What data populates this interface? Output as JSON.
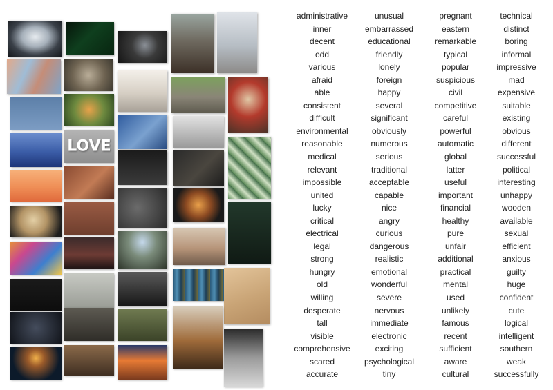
{
  "images": [
    {
      "name": "image-tunnel-skylight",
      "bg": "radial-gradient(ellipse at 50% 45%, #e6ebef 0%, #a6b0ba 35%, #3a4048 65%, #15181c 100%)"
    },
    {
      "name": "image-matrix-code-hands",
      "bg": "linear-gradient(135deg, #06150a, #0f3f1e 45%, #082510)"
    },
    {
      "name": "image-camera-photographer",
      "bg": "radial-gradient(circle at 55% 45%, #8a8f96 0%, #3a3a3a 40%, #141414 100%)"
    },
    {
      "name": "image-man-holding-hoop",
      "bg": "linear-gradient(180deg, #9aa6a0 0%, #6f6a60 45%, #3c3027 100%)"
    },
    {
      "name": "image-skateboarder-red-jacket",
      "bg": "linear-gradient(180deg, #dfe3e8 0%, #b6bdc4 55%, #8c8a88 100%)"
    },
    {
      "name": "image-abstract-paint-blue-orange",
      "bg": "linear-gradient(115deg, #e2a98a 0%, #9fbcd6 35%, #c58d78 60%, #7fa4c9 100%)"
    },
    {
      "name": "image-sheep-face",
      "bg": "radial-gradient(circle at 50% 50%, #b9ad98 0%, #6f6452 55%, #3e3a31 100%)"
    },
    {
      "name": "image-woman-stretching-window",
      "bg": "linear-gradient(180deg, #f3efe9 0%, #d6cfc4 55%, #a8a198 100%)"
    },
    {
      "name": "image-elephant",
      "bg": "linear-gradient(180deg, #7da05e 0%, #8a8577 55%, #5d5a4e 100%)"
    },
    {
      "name": "image-apples-dessert-jar",
      "bg": "radial-gradient(circle at 50% 40%, #e0c7a5 0%, #b33a2c 45%, #4b3328 100%)"
    },
    {
      "name": "image-moon-blue-sky",
      "bg": "linear-gradient(180deg, #5c7fa8 0%, #7c9cc3 100%)"
    },
    {
      "name": "image-butterfly-flower",
      "bg": "radial-gradient(circle at 50% 50%, #e7a24a 0%, #6e8a3f 50%, #2f4a22 100%)"
    },
    {
      "name": "image-hand-dandelion-blue",
      "bg": "linear-gradient(135deg, #2f5b9e, #7aa1cf 55%, #284a80)"
    },
    {
      "name": "image-palm-trees-grey",
      "bg": "linear-gradient(180deg, #e2e2e2 0%, #9a9a9a 100%)"
    },
    {
      "name": "image-love-sign",
      "bg": "linear-gradient(180deg, #b4b4b4 0%, #8e8e8e 100%)",
      "caption": "LOVE"
    },
    {
      "name": "image-blue-mountain-mist",
      "bg": "linear-gradient(180deg, #6d8fcf 0%, #3c5ea8 55%, #1e3579 100%)"
    },
    {
      "name": "image-hand-with-phone",
      "bg": "linear-gradient(180deg, #1b1b1b 0%, #3b3b3b 100%)"
    },
    {
      "name": "image-death-sign-book",
      "bg": "linear-gradient(135deg, #2a2a2a, #4a463f 55%, #1c1c1c)"
    },
    {
      "name": "image-green-leaves-pattern",
      "bg": "repeating-linear-gradient(45deg, #5f8c5a 0px, #cfe0c3 8px, #3f6b46 16px)"
    },
    {
      "name": "image-jellyfish-orange",
      "bg": "linear-gradient(180deg, #f7b17a 0%, #ef8e56 55%, #e06a3c 100%)"
    },
    {
      "name": "image-dog-paw-in-hand",
      "bg": "linear-gradient(135deg, #8a4b32, #c27b55 55%, #5a2e20)"
    },
    {
      "name": "image-spiral-staircase",
      "bg": "radial-gradient(circle at 40% 50%, #6b6b6b 0%, #2a2a2a 100%)"
    },
    {
      "name": "image-ramen-bowl",
      "bg": "radial-gradient(circle at 50% 50%, #e9a04a 0%, #8c4a22 40%, #1a1a1a 75%)"
    },
    {
      "name": "image-hand-dark-green",
      "bg": "linear-gradient(180deg, #22382b 0%, #101a14 100%)"
    },
    {
      "name": "image-retriever-dog",
      "bg": "radial-gradient(circle at 45% 45%, #e3cfa5 0%, #b39466 40%, #1d1d1d 85%)"
    },
    {
      "name": "image-bare-feet-bed",
      "bg": "linear-gradient(180deg, #9a5b44 0%, #6f3f2e 100%)"
    },
    {
      "name": "image-cave-waterfall",
      "bg": "radial-gradient(ellipse at 50% 30%, #c5d9ec 0%, #7a8b7a 40%, #2c3328 100%)"
    },
    {
      "name": "image-woman-headscarf-portrait",
      "bg": "linear-gradient(180deg, #d7c7b3 0%, #b7957a 55%, #6f5a4a 100%)"
    },
    {
      "name": "image-colorful-fluid-art",
      "bg": "linear-gradient(135deg, #e58f3a 0%, #c9488f 30%, #3d7fcf 65%, #f1c64a 100%)"
    },
    {
      "name": "image-concert-crowd-phones",
      "bg": "linear-gradient(180deg, #3c2b2b 0%, #6d3b34 55%, #1c1414 100%)"
    },
    {
      "name": "image-crowd-hands-bw",
      "bg": "linear-gradient(180deg, #5a5a5a 0%, #161616 100%)"
    },
    {
      "name": "image-mosaic-blue-art",
      "bg": "repeating-linear-gradient(90deg, #2a5a7a 0px, #4f8fb4 6px, #1e3e56 12px, #6e6a3a 18px)"
    },
    {
      "name": "image-desert-dunes",
      "bg": "linear-gradient(160deg, #e3c49a 0%, #c9a476 55%, #b48c60 100%)"
    },
    {
      "name": "image-dark-night-window",
      "bg": "linear-gradient(180deg, #1a1a1a 0%, #0d0d0d 100%)"
    },
    {
      "name": "image-cat-and-dog-playing",
      "bg": "linear-gradient(180deg, #c7c9c3 0%, #9a9d96 100%)"
    },
    {
      "name": "image-star-trails",
      "bg": "radial-gradient(circle at 50% 50%, #444c5c 0%, #11141a 100%)"
    },
    {
      "name": "image-astronaut-hat-guitar",
      "bg": "linear-gradient(180deg, #5d5a52 0%, #2f2d28 100%)"
    },
    {
      "name": "image-goose-with-glasses",
      "bg": "linear-gradient(180deg, #6f7a50 0%, #3b4328 100%)"
    },
    {
      "name": "image-person-in-field",
      "bg": "linear-gradient(180deg, #d8cdbb 0%, #9f6b3a 55%, #3e2a1a 100%)"
    },
    {
      "name": "image-swirling-water-bw",
      "bg": "linear-gradient(180deg, #2a2a2a 0%, #9a9a9a 50%, #d7d7d7 100%)"
    },
    {
      "name": "image-fireworks-silhouette",
      "bg": "radial-gradient(circle at 50% 35%, #f0b04a 0%, #9a5a2a 25%, #0c1a2a 70%)"
    },
    {
      "name": "image-man-sunglasses-drink",
      "bg": "linear-gradient(180deg, #8b6a4a 0%, #3f2f22 100%)"
    },
    {
      "name": "image-sunset-road",
      "bg": "linear-gradient(180deg, #2a3a6a 0%, #e77a34 45%, #7a3a1e 100%)"
    },
    {
      "name": "image-car-side-mirror",
      "bg": "linear-gradient(135deg, #2a2a2a 0%, #5a5a5a 45%, #1a1a1a 100%)"
    }
  ],
  "words": [
    "administrative",
    "unusual",
    "pregnant",
    "technical",
    "inner",
    "embarrassed",
    "eastern",
    "distinct",
    "decent",
    "educational",
    "remarkable",
    "boring",
    "odd",
    "friendly",
    "typical",
    "informal",
    "various",
    "lonely",
    "popular",
    "impressive",
    "afraid",
    "foreign",
    "suspicious",
    "mad",
    "able",
    "happy",
    "civil",
    "expensive",
    "consistent",
    "several",
    "competitive",
    "suitable",
    "difficult",
    "significant",
    "careful",
    "existing",
    "environmental",
    "obviously",
    "powerful",
    "obvious",
    "reasonable",
    "numerous",
    "automatic",
    "different",
    "medical",
    "serious",
    "global",
    "successful",
    "relevant",
    "traditional",
    "latter",
    "political",
    "impossible",
    "acceptable",
    "useful",
    "interesting",
    "united",
    "capable",
    "important",
    "unhappy",
    "lucky",
    "nice",
    "financial",
    "wooden",
    "critical",
    "angry",
    "healthy",
    "available",
    "electrical",
    "curious",
    "pure",
    "sexual",
    "legal",
    "dangerous",
    "unfair",
    "efficient",
    "strong",
    "realistic",
    "additional",
    "anxious",
    "hungry",
    "emotional",
    "practical",
    "guilty",
    "old",
    "wonderful",
    "mental",
    "huge",
    "willing",
    "severe",
    "used",
    "confident",
    "desperate",
    "nervous",
    "unlikely",
    "cute",
    "tall",
    "immediate",
    "famous",
    "logical",
    "visible",
    "electronic",
    "recent",
    "intelligent",
    "comprehensive",
    "exciting",
    "sufficient",
    "southern",
    "scared",
    "psychological",
    "aware",
    "weak",
    "accurate",
    "tiny",
    "cultural",
    "successfully"
  ]
}
